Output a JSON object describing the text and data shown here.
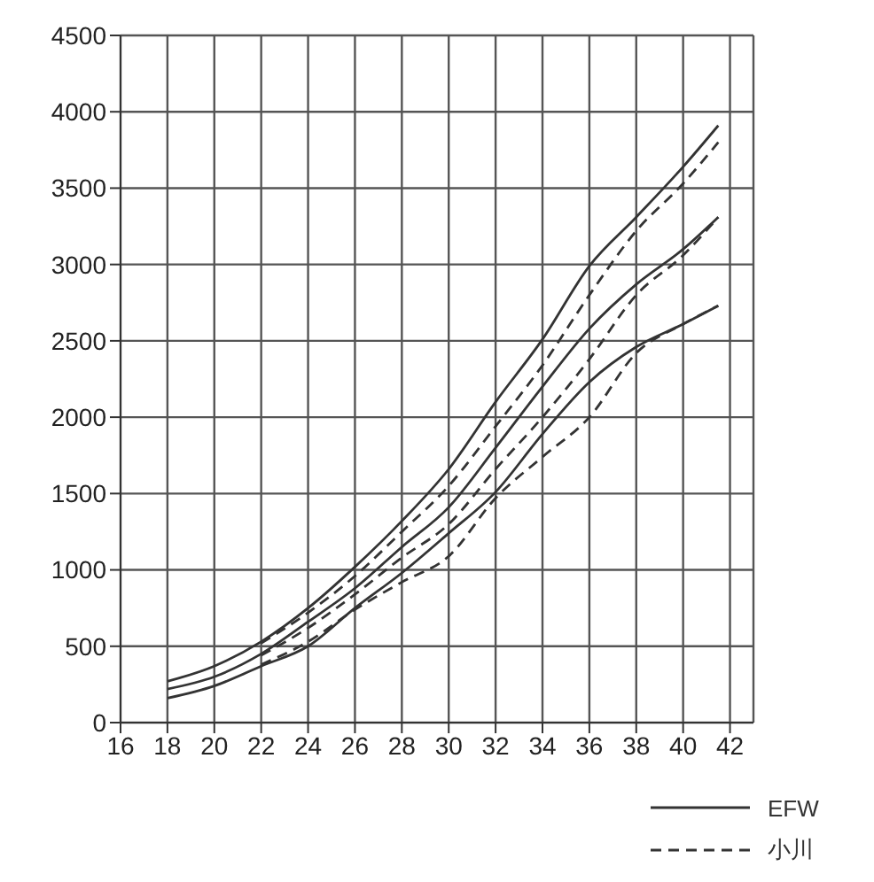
{
  "chart_data": {
    "type": "line",
    "x": [
      18,
      20,
      22,
      24,
      26,
      28,
      30,
      32,
      34,
      36,
      38,
      40,
      41.5
    ],
    "series": [
      {
        "name": "EFW",
        "color": "#333333",
        "line_style": "solid",
        "values": [
          270,
          370,
          530,
          750,
          1020,
          1320,
          1660,
          2100,
          2510,
          2990,
          3310,
          3640,
          3910
        ]
      },
      {
        "color": "#333333",
        "line_style": "solid",
        "values": [
          220,
          300,
          450,
          660,
          880,
          1150,
          1410,
          1800,
          2200,
          2580,
          2870,
          3100,
          3310
        ]
      },
      {
        "color": "#333333",
        "line_style": "solid",
        "values": [
          160,
          240,
          370,
          500,
          750,
          980,
          1240,
          1510,
          1890,
          2230,
          2460,
          2610,
          2730
        ]
      },
      {
        "name": "小川",
        "color": "#333333",
        "line_style": "dashed",
        "values": [
          null,
          null,
          520,
          720,
          960,
          1250,
          1550,
          1940,
          2340,
          2800,
          3220,
          3530,
          3800
        ]
      },
      {
        "color": "#333333",
        "line_style": "dashed",
        "values": [
          null,
          null,
          440,
          620,
          840,
          1080,
          1300,
          1660,
          2000,
          2380,
          2800,
          3060,
          3310
        ]
      },
      {
        "color": "#333333",
        "line_style": "dashed",
        "values": [
          null,
          null,
          380,
          530,
          740,
          920,
          1090,
          1470,
          1740,
          2000,
          2420,
          2610,
          2730
        ]
      }
    ],
    "xlim": [
      16,
      43
    ],
    "xticks": [
      16,
      18,
      20,
      22,
      24,
      26,
      28,
      30,
      32,
      34,
      36,
      38,
      40,
      42
    ],
    "ylim": [
      0,
      4500
    ],
    "yticks": [
      0,
      500,
      1000,
      1500,
      2000,
      2500,
      3000,
      3500,
      4000,
      4500
    ],
    "grid": true,
    "legend": "bottom right",
    "marker": "none"
  }
}
